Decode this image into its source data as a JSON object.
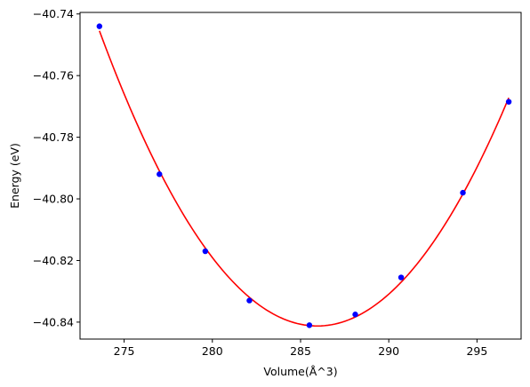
{
  "chart_data": {
    "type": "scatter",
    "xlabel": "Volume(Å^3)",
    "ylabel": "Energy (eV)",
    "xlim": [
      272.5,
      297.5
    ],
    "ylim": [
      -40.8455,
      -40.7395
    ],
    "xticks": [
      275,
      280,
      285,
      290,
      295
    ],
    "xtick_labels": [
      "275",
      "280",
      "285",
      "290",
      "295"
    ],
    "yticks": [
      -40.84,
      -40.82,
      -40.8,
      -40.78,
      -40.76,
      -40.74
    ],
    "ytick_labels": [
      "−40.84",
      "−40.82",
      "−40.80",
      "−40.78",
      "−40.76",
      "−40.74"
    ],
    "grid": false,
    "series": [
      {
        "kind": "scatter",
        "color": "#0000ff",
        "x": [
          273.6,
          277.0,
          279.6,
          282.1,
          285.5,
          288.1,
          290.7,
          294.2,
          296.8
        ],
        "y": [
          -40.744,
          -40.792,
          -40.817,
          -40.833,
          -40.841,
          -40.8375,
          -40.8255,
          -40.798,
          -40.7685
        ]
      },
      {
        "kind": "line",
        "color": "#ff0000",
        "x": [
          273.6,
          274.6,
          275.6,
          276.6,
          277.6,
          278.6,
          279.6,
          280.6,
          281.6,
          282.6,
          283.6,
          284.6,
          285.6,
          286.6,
          287.6,
          288.6,
          289.6,
          290.6,
          291.6,
          292.6,
          293.6,
          294.6,
          295.6,
          296.8
        ],
        "y": [
          -40.744,
          -40.7608,
          -40.7755,
          -40.7884,
          -40.7993,
          -40.8085,
          -40.816,
          -40.8218,
          -40.8262,
          -40.8293,
          -40.8311,
          -40.8318,
          -40.8314,
          -40.8299,
          -40.8276,
          -40.8244,
          -40.8203,
          -40.8154,
          -40.8097,
          -40.8032,
          -40.7957,
          -40.7873,
          -40.778,
          -40.7654
        ]
      }
    ]
  }
}
